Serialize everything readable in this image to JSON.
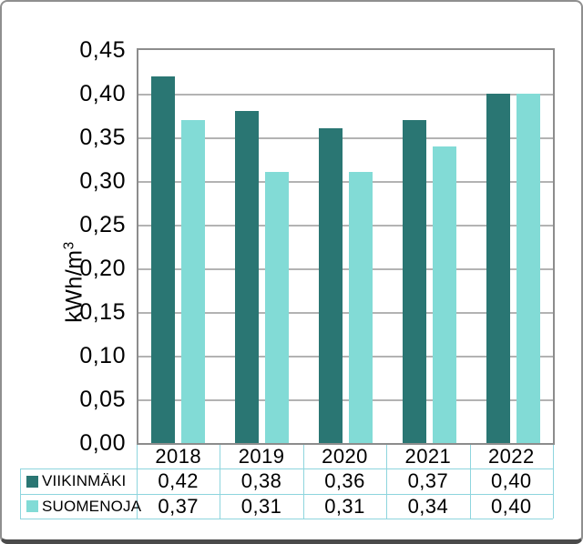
{
  "chart_data": {
    "type": "bar",
    "title": "",
    "ylabel": "kWh/m³",
    "ylabel_base": "kWh/m",
    "ylabel_sup": "3",
    "xlabel": "",
    "categories": [
      "2018",
      "2019",
      "2020",
      "2021",
      "2022"
    ],
    "series": [
      {
        "name": "VIIKINMÄKI",
        "color": "#2a7673",
        "values": [
          0.42,
          0.38,
          0.36,
          0.37,
          0.4
        ],
        "value_labels": [
          "0,42",
          "0,38",
          "0,36",
          "0,37",
          "0,40"
        ]
      },
      {
        "name": "SUOMENOJA",
        "color": "#82dbd6",
        "values": [
          0.37,
          0.31,
          0.31,
          0.34,
          0.4
        ],
        "value_labels": [
          "0,37",
          "0,31",
          "0,31",
          "0,34",
          "0,40"
        ]
      }
    ],
    "ylim": [
      0,
      0.45
    ],
    "ytick_step": 0.05,
    "ytick_labels": [
      "0,00",
      "0,05",
      "0,10",
      "0,15",
      "0,20",
      "0,25",
      "0,30",
      "0,35",
      "0,40",
      "0,45"
    ],
    "grid": true,
    "legend_position": "data-table-left",
    "decimal_separator": ","
  },
  "colors": {
    "series_dark": "#2a7673",
    "series_light": "#82dbd6",
    "table_border": "#8ed5de",
    "gridline": "#b3b3b3",
    "plot_border": "#8c8c8c",
    "text": "#000000",
    "background": "#ffffff"
  }
}
